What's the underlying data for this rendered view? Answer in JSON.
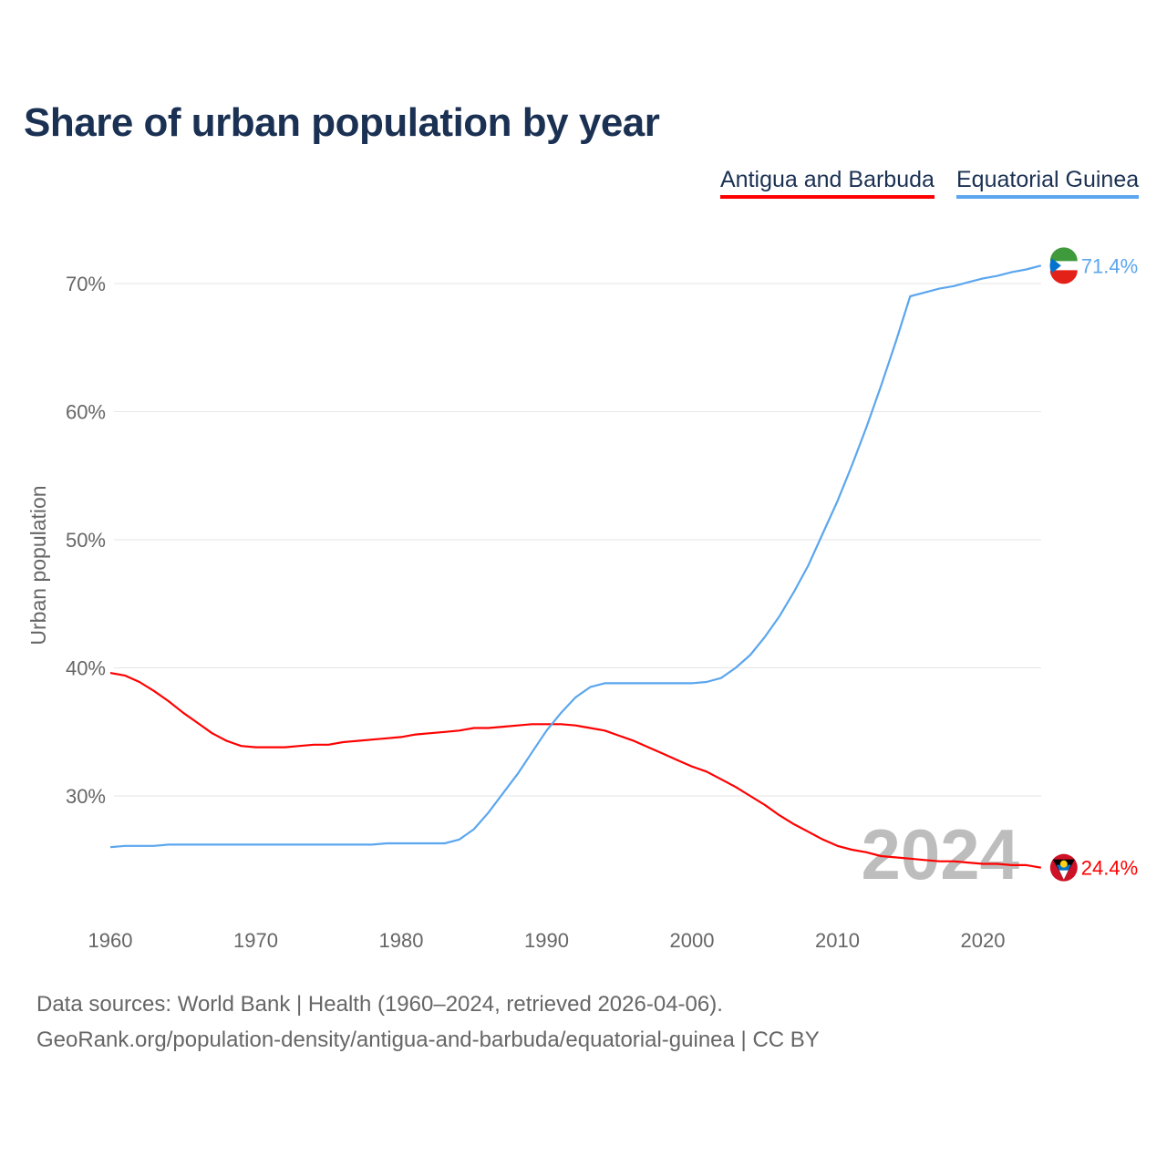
{
  "title": "Share of urban population by year",
  "legend": [
    {
      "label": "Antigua and Barbuda",
      "color": "#ff0000"
    },
    {
      "label": "Equatorial Guinea",
      "color": "#5ba6ee"
    }
  ],
  "chart_data": {
    "type": "line",
    "title": "Share of urban population by year",
    "xlabel": "",
    "ylabel": "Urban population",
    "xlim": [
      1960,
      2024
    ],
    "ylim": [
      22,
      73
    ],
    "x_ticks": [
      1960,
      1970,
      1980,
      1990,
      2000,
      2010,
      2020
    ],
    "y_ticks": [
      30,
      40,
      50,
      60,
      70
    ],
    "y_tick_labels": [
      "30%",
      "40%",
      "50%",
      "60%",
      "70%"
    ],
    "grid": true,
    "year_label": "2024",
    "series": [
      {
        "name": "Antigua and Barbuda",
        "color": "#ff0000",
        "end_label": "24.4%",
        "x_start": 1960,
        "values": [
          39.6,
          39.4,
          38.9,
          38.2,
          37.4,
          36.5,
          35.7,
          34.9,
          34.3,
          33.9,
          33.8,
          33.8,
          33.8,
          33.9,
          34.0,
          34.0,
          34.2,
          34.3,
          34.4,
          34.5,
          34.6,
          34.8,
          34.9,
          35.0,
          35.1,
          35.3,
          35.3,
          35.4,
          35.5,
          35.6,
          35.6,
          35.6,
          35.5,
          35.3,
          35.1,
          34.7,
          34.3,
          33.8,
          33.3,
          32.8,
          32.3,
          31.9,
          31.3,
          30.7,
          30.0,
          29.3,
          28.5,
          27.8,
          27.2,
          26.6,
          26.1,
          25.8,
          25.6,
          25.3,
          25.2,
          25.1,
          25.0,
          24.9,
          24.9,
          24.8,
          24.7,
          24.7,
          24.6,
          24.6,
          24.4
        ]
      },
      {
        "name": "Equatorial Guinea",
        "color": "#5ba6ee",
        "end_label": "71.4%",
        "x_start": 1960,
        "values": [
          26.0,
          26.1,
          26.1,
          26.1,
          26.2,
          26.2,
          26.2,
          26.2,
          26.2,
          26.2,
          26.2,
          26.2,
          26.2,
          26.2,
          26.2,
          26.2,
          26.2,
          26.2,
          26.2,
          26.3,
          26.3,
          26.3,
          26.3,
          26.3,
          26.6,
          27.4,
          28.7,
          30.2,
          31.7,
          33.4,
          35.1,
          36.5,
          37.7,
          38.5,
          38.8,
          38.8,
          38.8,
          38.8,
          38.8,
          38.8,
          38.8,
          38.9,
          39.2,
          40.0,
          41.0,
          42.4,
          44.0,
          45.9,
          48.0,
          50.5,
          53.0,
          55.8,
          58.8,
          62.0,
          65.4,
          69.0,
          69.3,
          69.6,
          69.8,
          70.1,
          70.4,
          70.6,
          70.9,
          71.1,
          71.4
        ]
      }
    ]
  },
  "footer": {
    "line1": "Data sources: World Bank | Health (1960–2024, retrieved 2026-04-06).",
    "line2": "GeoRank.org/population-density/antigua-and-barbuda/equatorial-guinea | CC BY"
  }
}
